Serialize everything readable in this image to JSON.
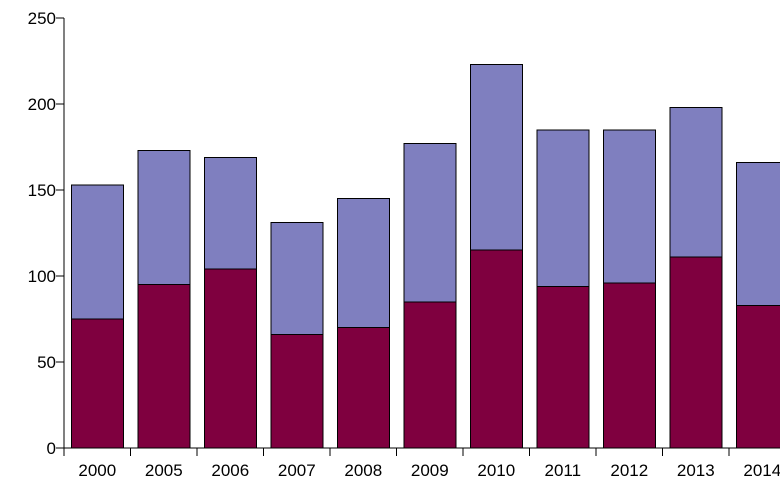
{
  "chart_data": {
    "type": "bar",
    "stacked": true,
    "categories": [
      "2000",
      "2005",
      "2006",
      "2007",
      "2008",
      "2009",
      "2010",
      "2011",
      "2012",
      "2013",
      "2014"
    ],
    "series": [
      {
        "color": "#7f003f",
        "values": [
          75,
          95,
          104,
          66,
          70,
          85,
          115,
          94,
          96,
          111,
          83
        ]
      },
      {
        "color": "#7f7fbf",
        "values": [
          78,
          78,
          65,
          65,
          75,
          92,
          108,
          91,
          89,
          87,
          83
        ]
      }
    ],
    "yticks": [
      0,
      50,
      100,
      150,
      200,
      250
    ],
    "ylim": [
      0,
      250
    ],
    "grid": false,
    "legend": "none",
    "title": "",
    "xlabel": "",
    "ylabel": ""
  }
}
